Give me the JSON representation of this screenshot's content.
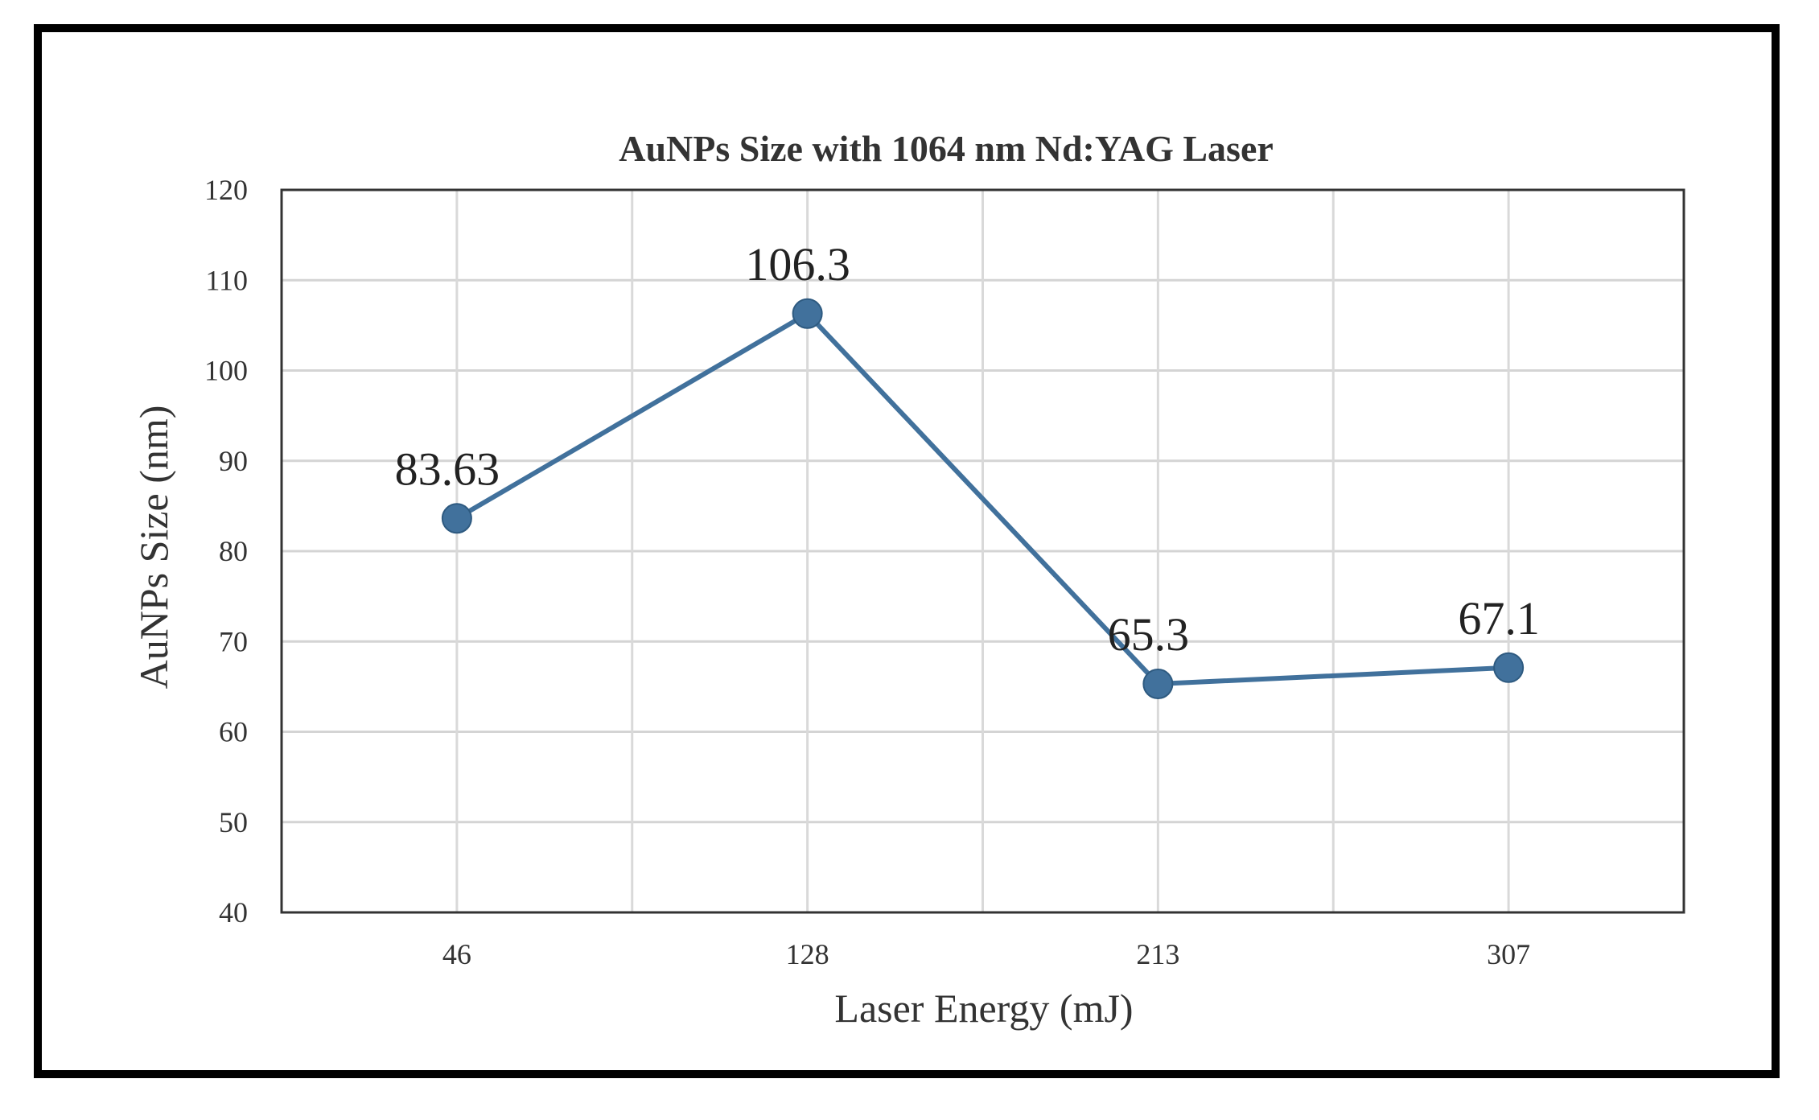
{
  "chart_data": {
    "type": "line",
    "title": "AuNPs Size with 1064 nm Nd:YAG Laser",
    "xlabel": "Laser Energy (mJ)",
    "ylabel": "AuNPs Size (nm)",
    "categories": [
      "46",
      "128",
      "213",
      "307"
    ],
    "series": [
      {
        "name": "AuNPs Size",
        "values": [
          83.63,
          106.3,
          65.3,
          67.1
        ],
        "labels": [
          "83.63",
          "106.3",
          "65.3",
          "67.1"
        ],
        "color": "#41719c"
      }
    ],
    "ylim": [
      40,
      120
    ],
    "yticks": [
      "40",
      "50",
      "60",
      "70",
      "80",
      "90",
      "100",
      "110",
      "120"
    ],
    "grid": true
  }
}
